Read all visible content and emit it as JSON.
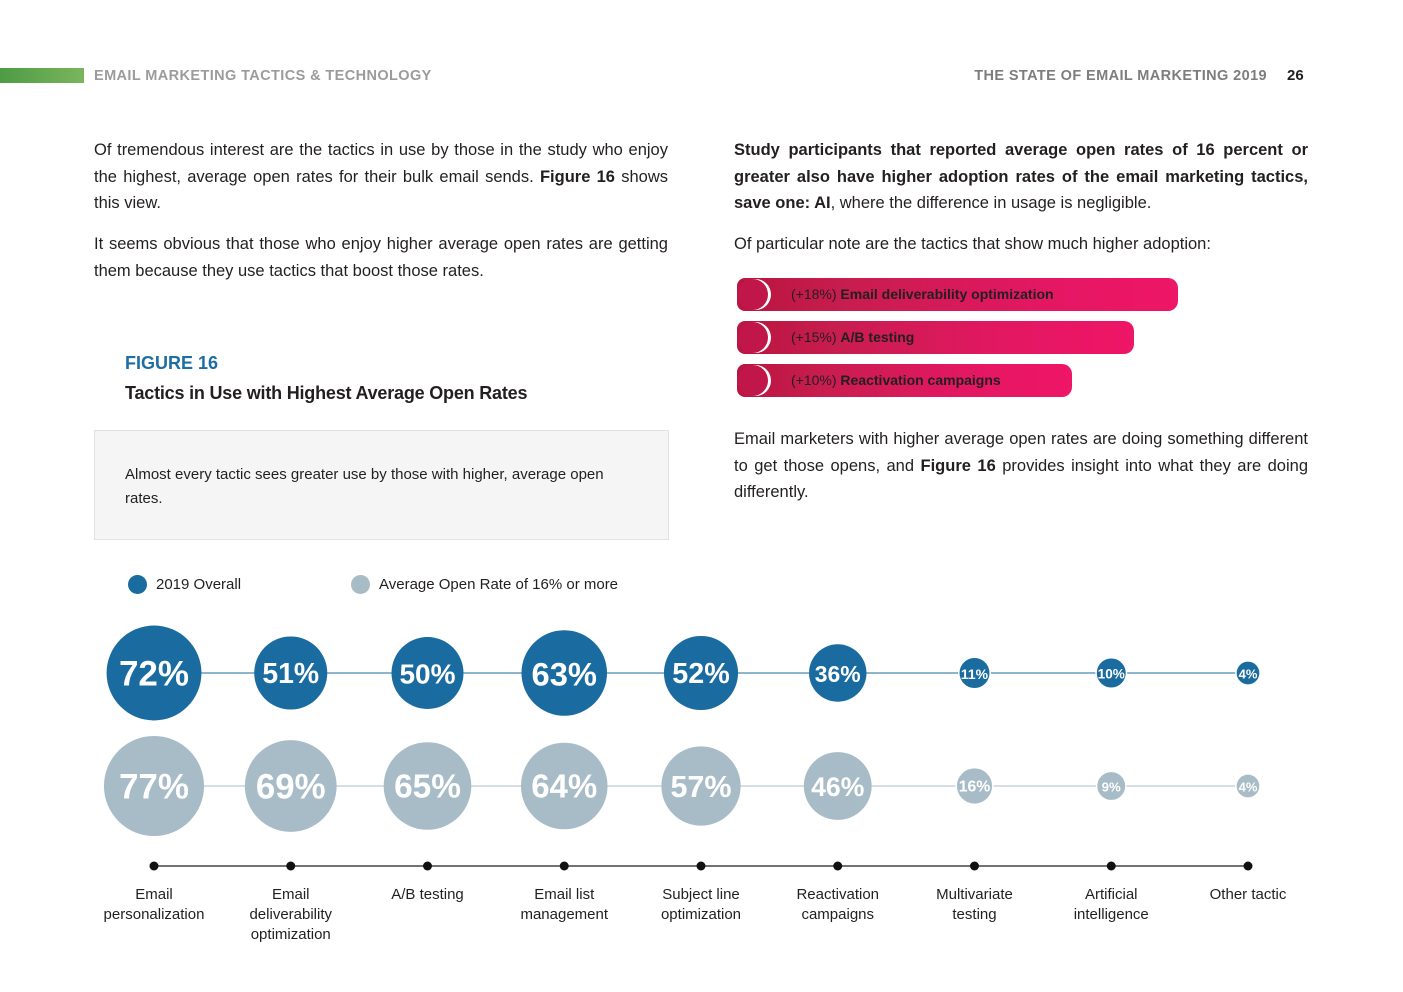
{
  "header": {
    "section": "EMAIL MARKETING TACTICS & TECHNOLOGY",
    "report": "THE STATE OF EMAIL MARKETING 2019",
    "page": "26"
  },
  "left_column": {
    "p1_a": "Of tremendous interest are the tactics in use by those in the study who enjoy the highest, average open rates for their bulk email sends. ",
    "p1_bold": "Figure 16",
    "p1_b": " shows this view.",
    "p2": "It seems obvious that those who enjoy higher average open rates are getting them because they use tactics that boost those rates."
  },
  "right_column": {
    "p1_bold": "Study participants that reported average open rates of 16 percent or greater also have higher adoption rates of the email marketing tactics, save one: AI",
    "p1_rest": ", where the difference in usage is negligible.",
    "p2": "Of particular note are the tactics that show much higher adoption:",
    "p3_a": "Email marketers with higher average open rates are doing something different to get those opens, and ",
    "p3_bold": "Figure 16",
    "p3_b": " provides insight into what they are doing differently."
  },
  "highlights": [
    {
      "delta": "(+18%) ",
      "label": "Email deliverability optimization"
    },
    {
      "delta": "(+15%) ",
      "label": "A/B testing"
    },
    {
      "delta": "(+10%) ",
      "label": "Reactivation campaigns"
    }
  ],
  "figure": {
    "label": "FIGURE 16",
    "title": "Tactics in Use with Highest Average Open Rates",
    "callout": "Almost every tactic sees greater use by those with higher, average open rates."
  },
  "colors": {
    "overall": "#1a6ba0",
    "high_open": "#a8bcc8",
    "accent": "#e0145f",
    "figure_blue": "#1c6ea4"
  },
  "chart_data": {
    "type": "bubble",
    "legend": [
      {
        "name": "2019 Overall",
        "color": "#1a6ba0"
      },
      {
        "name": "Average Open Rate of 16% or more",
        "color": "#a8bcc8"
      }
    ],
    "categories": [
      [
        "Email",
        "personalization"
      ],
      [
        "Email",
        "deliverability",
        "optimization"
      ],
      [
        "A/B testing"
      ],
      [
        "Email list",
        "management"
      ],
      [
        "Subject line",
        "optimization"
      ],
      [
        "Reactivation",
        "campaigns"
      ],
      [
        "Multivariate",
        "testing"
      ],
      [
        "Artificial",
        "intelligence"
      ],
      [
        "Other tactic"
      ]
    ],
    "series": [
      {
        "name": "2019 Overall",
        "values": [
          72,
          51,
          50,
          63,
          52,
          36,
          11,
          10,
          4
        ]
      },
      {
        "name": "Average Open Rate of 16% or more",
        "values": [
          77,
          69,
          65,
          64,
          57,
          46,
          16,
          9,
          4
        ]
      }
    ],
    "unit": "%"
  }
}
